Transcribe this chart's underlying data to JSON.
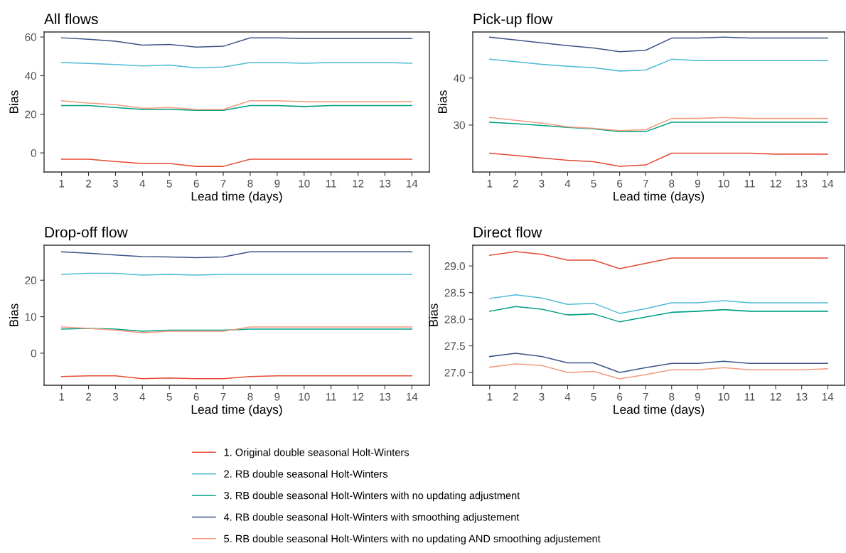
{
  "chart_data": [
    {
      "type": "line",
      "title": "All flows",
      "xlabel": "Lead time (days)",
      "ylabel": "Bias",
      "x": [
        1,
        2,
        3,
        4,
        5,
        6,
        7,
        8,
        9,
        10,
        11,
        12,
        13,
        14
      ],
      "xlim": [
        0.35,
        14.65
      ],
      "xticks": [
        1,
        2,
        3,
        4,
        5,
        6,
        7,
        8,
        9,
        10,
        11,
        12,
        13,
        14
      ],
      "ylim": [
        -9.9,
        62.6
      ],
      "yticks": [
        0,
        20,
        40,
        60
      ],
      "grid": false,
      "legend": "bottom",
      "series": [
        {
          "name": "1. Original double seasonal Holt-Winters",
          "color": "#e64b35",
          "values": [
            -3.3,
            -3.3,
            -4.5,
            -5.5,
            -5.5,
            -7,
            -7,
            -3.3,
            -3.3,
            -3.3,
            -3.3,
            -3.3,
            -3.3,
            -3.3
          ]
        },
        {
          "name": "2. RB double seasonal Holt-Winters",
          "color": "#4dbbd5",
          "values": [
            46.8,
            46.3,
            45.8,
            45,
            45.5,
            44,
            44.5,
            46.8,
            46.8,
            46.4,
            46.8,
            46.8,
            46.8,
            46.4
          ]
        },
        {
          "name": "3. RB double seasonal Holt-Winters with no updating adjustment",
          "color": "#00a087",
          "values": [
            24.5,
            24.5,
            23.5,
            22.5,
            22.5,
            22,
            22,
            24.5,
            24.5,
            24,
            24.5,
            24.5,
            24.5,
            24.5
          ]
        },
        {
          "name": "4. RB double seasonal Holt-Winters with smoothing adjustement",
          "color": "#3c5488",
          "values": [
            59.6,
            58.8,
            57.8,
            55.8,
            56.2,
            54.8,
            55.2,
            59.6,
            59.6,
            59.2,
            59.2,
            59.2,
            59.2,
            59.2
          ]
        },
        {
          "name": "5. RB double seasonal Holt-Winters with no updating AND smoothing adjustement",
          "color": "#f39b7f",
          "values": [
            27,
            25.8,
            25,
            23,
            23.5,
            22.5,
            22.5,
            27,
            27,
            26.5,
            26.5,
            26.5,
            26.5,
            26.5
          ]
        }
      ]
    },
    {
      "type": "line",
      "title": "Pick-up flow",
      "xlabel": "Lead time (days)",
      "ylabel": "Bias",
      "x": [
        1,
        2,
        3,
        4,
        5,
        6,
        7,
        8,
        9,
        10,
        11,
        12,
        13,
        14
      ],
      "xlim": [
        0.35,
        14.65
      ],
      "xticks": [
        1,
        2,
        3,
        4,
        5,
        6,
        7,
        8,
        9,
        10,
        11,
        12,
        13,
        14
      ],
      "ylim": [
        20.0,
        49.8
      ],
      "yticks": [
        30,
        40
      ],
      "grid": false,
      "series": [
        {
          "color": "#e64b35",
          "values": [
            24.0,
            23.5,
            23.0,
            22.5,
            22.2,
            21.2,
            21.5,
            24.0,
            24.0,
            24.0,
            24.0,
            23.8,
            23.8,
            23.8
          ]
        },
        {
          "color": "#4dbbd5",
          "values": [
            44.0,
            43.5,
            42.9,
            42.5,
            42.2,
            41.5,
            41.7,
            44.0,
            43.7,
            43.7,
            43.7,
            43.7,
            43.7,
            43.7
          ]
        },
        {
          "color": "#00a087",
          "values": [
            30.6,
            30.3,
            29.9,
            29.5,
            29.2,
            28.6,
            28.6,
            30.6,
            30.6,
            30.6,
            30.6,
            30.6,
            30.6,
            30.6
          ]
        },
        {
          "color": "#3c5488",
          "values": [
            48.7,
            48.1,
            47.5,
            46.9,
            46.4,
            45.6,
            45.9,
            48.5,
            48.5,
            48.7,
            48.5,
            48.5,
            48.5,
            48.5
          ]
        },
        {
          "color": "#f39b7f",
          "values": [
            31.6,
            31.0,
            30.4,
            29.6,
            29.3,
            28.8,
            29.0,
            31.4,
            31.4,
            31.6,
            31.4,
            31.4,
            31.4,
            31.4
          ]
        }
      ]
    },
    {
      "type": "line",
      "title": "Drop-off flow",
      "xlabel": "Lead time (days)",
      "ylabel": "Bias",
      "x": [
        1,
        2,
        3,
        4,
        5,
        6,
        7,
        8,
        9,
        10,
        11,
        12,
        13,
        14
      ],
      "xlim": [
        0.35,
        14.65
      ],
      "xticks": [
        1,
        2,
        3,
        4,
        5,
        6,
        7,
        8,
        9,
        10,
        11,
        12,
        13,
        14
      ],
      "ylim": [
        -8.8,
        29.6
      ],
      "yticks": [
        0,
        10,
        20
      ],
      "grid": false,
      "series": [
        {
          "color": "#e64b35",
          "values": [
            -6.4,
            -6.2,
            -6.2,
            -7.0,
            -6.8,
            -7.0,
            -7.0,
            -6.4,
            -6.2,
            -6.2,
            -6.2,
            -6.2,
            -6.2,
            -6.2
          ]
        },
        {
          "color": "#4dbbd5",
          "values": [
            21.6,
            21.9,
            21.9,
            21.4,
            21.6,
            21.4,
            21.6,
            21.6,
            21.6,
            21.6,
            21.6,
            21.6,
            21.6,
            21.6
          ]
        },
        {
          "color": "#00a087",
          "values": [
            6.6,
            6.8,
            6.6,
            6.0,
            6.3,
            6.3,
            6.3,
            6.6,
            6.6,
            6.6,
            6.6,
            6.6,
            6.6,
            6.6
          ]
        },
        {
          "color": "#3c5488",
          "values": [
            27.8,
            27.4,
            26.9,
            26.5,
            26.4,
            26.2,
            26.4,
            27.8,
            27.8,
            27.8,
            27.8,
            27.8,
            27.8,
            27.8
          ]
        },
        {
          "color": "#f39b7f",
          "values": [
            7.2,
            6.8,
            6.3,
            5.6,
            6.0,
            6.0,
            6.0,
            7.2,
            7.2,
            7.2,
            7.2,
            7.2,
            7.2,
            7.2
          ]
        }
      ]
    },
    {
      "type": "line",
      "title": "Direct flow",
      "xlabel": "Lead time (days)",
      "ylabel": "Bias",
      "x": [
        1,
        2,
        3,
        4,
        5,
        6,
        7,
        8,
        9,
        10,
        11,
        12,
        13,
        14
      ],
      "xlim": [
        0.35,
        14.65
      ],
      "xticks": [
        1,
        2,
        3,
        4,
        5,
        6,
        7,
        8,
        9,
        10,
        11,
        12,
        13,
        14
      ],
      "ylim": [
        26.76,
        29.39
      ],
      "yticks": [
        {
          "value": 27,
          "label": "27.0"
        },
        27.5,
        {
          "value": 28,
          "label": "28.0"
        },
        28.5,
        {
          "value": 29,
          "label": "29.0"
        }
      ],
      "grid": false,
      "series": [
        {
          "color": "#e64b35",
          "values": [
            29.2,
            29.27,
            29.22,
            29.11,
            29.11,
            28.95,
            29.05,
            29.15,
            29.15,
            29.15,
            29.15,
            29.15,
            29.15,
            29.15
          ]
        },
        {
          "color": "#4dbbd5",
          "values": [
            28.39,
            28.46,
            28.4,
            28.28,
            28.3,
            28.11,
            28.2,
            28.31,
            28.31,
            28.35,
            28.31,
            28.31,
            28.31,
            28.31
          ]
        },
        {
          "color": "#00a087",
          "values": [
            28.15,
            28.24,
            28.19,
            28.08,
            28.1,
            27.95,
            28.04,
            28.13,
            28.15,
            28.18,
            28.15,
            28.15,
            28.15,
            28.15
          ]
        },
        {
          "color": "#3c5488",
          "values": [
            27.3,
            27.36,
            27.3,
            27.18,
            27.18,
            27.0,
            27.09,
            27.17,
            27.17,
            27.21,
            27.17,
            27.17,
            27.17,
            27.17
          ]
        },
        {
          "color": "#f39b7f",
          "values": [
            27.1,
            27.16,
            27.13,
            27.0,
            27.02,
            26.88,
            26.96,
            27.05,
            27.05,
            27.09,
            27.05,
            27.05,
            27.05,
            27.07
          ]
        }
      ]
    }
  ]
}
